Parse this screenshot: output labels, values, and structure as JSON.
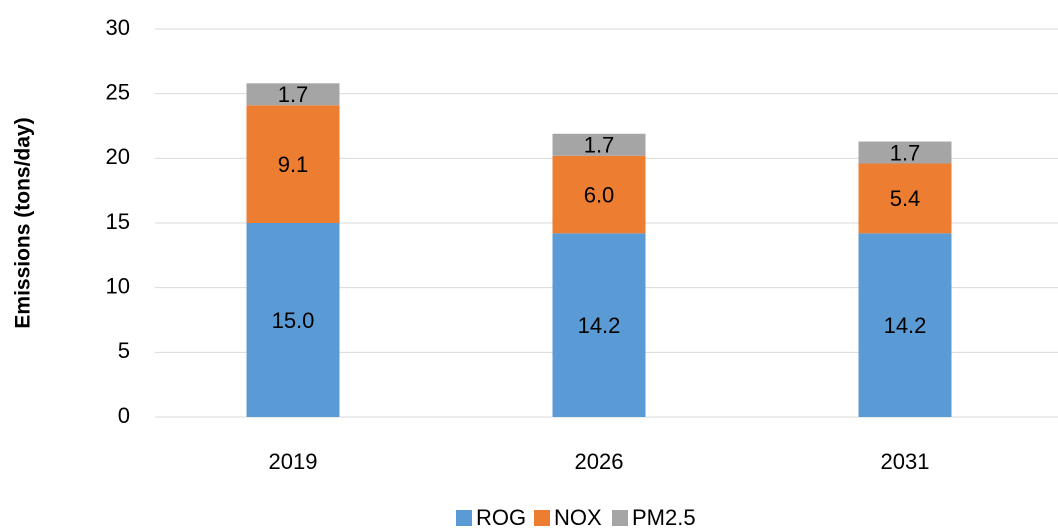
{
  "chart_data": {
    "type": "stacked_bar",
    "y_label": "Emissions (tons/day)",
    "categories": [
      "2019",
      "2026",
      "2031"
    ],
    "series": [
      {
        "name": "ROG",
        "color": "#5b9bd5",
        "values": [
          15.0,
          14.2,
          14.2
        ],
        "value_labels": [
          "15.0",
          "14.2",
          "14.2"
        ]
      },
      {
        "name": "NOX",
        "color": "#ed7d31",
        "values": [
          9.1,
          6.0,
          5.4
        ],
        "value_labels": [
          "9.1",
          "6.0",
          "5.4"
        ]
      },
      {
        "name": "PM2.5",
        "color": "#a5a5a5",
        "values": [
          1.7,
          1.7,
          1.7
        ],
        "value_labels": [
          "1.7",
          "1.7",
          "1.7"
        ]
      }
    ],
    "ylim": [
      0,
      30
    ],
    "yticks": [
      0,
      5,
      10,
      15,
      20,
      25,
      30
    ],
    "grid": true,
    "legend": "bottom"
  }
}
